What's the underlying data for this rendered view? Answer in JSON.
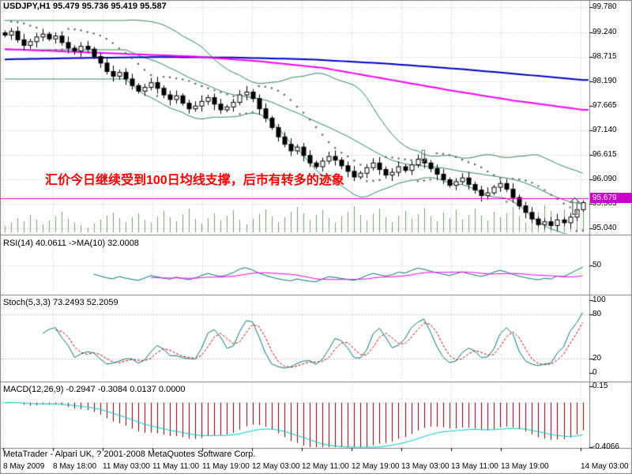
{
  "main_chart": {
    "title": "USDJPY,H1 95.479 95.736 95.419 95.587",
    "annotation": {
      "text": "汇价今日继续受到100日均线支撑，后市有转多的迹象",
      "color": "#ff0000"
    },
    "hline": {
      "label": "95.679",
      "value": 95.679,
      "color": "#cc00cc"
    },
    "price_ticks": [
      "99.780",
      "99.240",
      "98.715",
      "98.190",
      "97.665",
      "97.140",
      "96.615",
      "96.090",
      "95.565",
      "95.040"
    ],
    "arrows": {
      "down": "⇩",
      "up": "⇧"
    }
  },
  "panels": {
    "rsi": {
      "label": "RSI(14) 40.0611  ->MA(10) 32.0008",
      "ticks": [
        "50"
      ],
      "levels": [
        50
      ]
    },
    "stoch": {
      "label": "Stoch(5,3,3) 73.2493 52.2059",
      "ticks": [
        "100",
        "80",
        "20",
        "0"
      ],
      "levels": [
        80,
        20
      ]
    },
    "macd": {
      "label": "MACD(12,26,9) -0.2947  -0.3084 0.0137 0.0000",
      "ticks": [
        "0.15",
        "-0.4066"
      ]
    }
  },
  "time_axis": {
    "labels": [
      "8 May 2009",
      "8 May 18:00",
      "11 May 03:00",
      "11 May 11:00",
      "11 May 19:00",
      "12 May 03:00",
      "12 May 11:00",
      "12 May 19:00",
      "13 May 03:00",
      "13 May 11:00",
      "13 May 19:00",
      "14 May 03:00"
    ]
  },
  "status_bar": {
    "text": "MetaTrader - Alpari UK, ? 2001-2008 MetaQuotes Software Corp."
  },
  "colors": {
    "background": "#ffffff",
    "grid": "#c8c8c8",
    "divider": "#808080",
    "bull": "#ffffff",
    "bear": "#000000",
    "candle_border": "#000000",
    "bollinger": "#2e8b57",
    "ma_fast": "#ff00ff",
    "ma_slow": "#0000c8",
    "sar": "#606060",
    "volume": "#79a079",
    "rsi": "#007878",
    "rsi_ma": "#ff00ff",
    "stoch_k": "#007878",
    "stoch_d": "#cc0000",
    "macd_hist": "#800000",
    "macd_signal": "#00cccc",
    "hline": "#cc00cc",
    "annotation": "#ff0000"
  },
  "chart_data": {
    "type": "candlestick",
    "symbol": "USDJPY",
    "timeframe": "H1",
    "current_ohlc": {
      "open": 95.479,
      "high": 95.736,
      "low": 95.419,
      "close": 95.587
    },
    "ylim": [
      95.04,
      99.78
    ],
    "support_line": 95.679,
    "closes": [
      99.18,
      99.26,
      99.08,
      98.96,
      99.04,
      99.14,
      99.2,
      99.1,
      99.16,
      99.02,
      98.9,
      98.84,
      98.94,
      98.88,
      98.72,
      98.58,
      98.4,
      98.3,
      98.38,
      98.24,
      98.1,
      97.98,
      98.06,
      98.16,
      98.04,
      97.9,
      97.8,
      97.88,
      97.72,
      97.6,
      97.66,
      97.76,
      97.84,
      97.7,
      97.58,
      97.64,
      97.74,
      97.9,
      97.96,
      97.82,
      97.6,
      97.4,
      97.2,
      97.0,
      96.84,
      96.7,
      96.78,
      96.6,
      96.44,
      96.36,
      96.48,
      96.58,
      96.5,
      96.38,
      96.26,
      96.14,
      96.22,
      96.34,
      96.44,
      96.3,
      96.18,
      96.24,
      96.36,
      96.28,
      96.4,
      96.52,
      96.44,
      96.32,
      96.2,
      96.08,
      95.96,
      96.04,
      96.12,
      95.98,
      95.86,
      95.74,
      95.8,
      95.92,
      96.0,
      95.88,
      95.7,
      95.52,
      95.38,
      95.24,
      95.12,
      95.18,
      95.1,
      95.22,
      95.16,
      95.28,
      95.44,
      95.59
    ],
    "volumes": [
      8,
      12,
      18,
      14,
      22,
      16,
      10,
      15,
      20,
      26,
      17,
      12,
      9,
      6,
      11,
      16,
      21,
      25,
      18,
      13,
      19,
      24,
      16,
      12,
      20,
      27,
      19,
      14,
      23,
      30,
      17,
      11,
      18,
      24,
      15,
      21,
      28,
      16,
      10,
      17,
      23,
      29,
      20,
      13,
      19,
      26,
      32,
      24,
      16,
      22,
      28,
      18,
      12,
      20,
      26,
      33,
      22,
      15,
      24,
      30,
      19,
      13,
      21,
      27,
      17,
      23,
      31,
      20,
      14,
      25,
      18,
      28,
      16,
      22,
      30,
      21,
      15,
      26,
      19,
      24,
      32,
      20,
      12,
      18,
      25,
      34,
      27,
      22,
      29,
      24,
      31,
      38
    ],
    "overlays": {
      "bollinger_period": 20,
      "bollinger_dev": 2,
      "ma_slow_points": [
        [
          0,
          98.66
        ],
        [
          12,
          98.69
        ],
        [
          24,
          98.71
        ],
        [
          36,
          98.7
        ],
        [
          48,
          98.66
        ],
        [
          60,
          98.57
        ],
        [
          72,
          98.45
        ],
        [
          82,
          98.33
        ],
        [
          91,
          98.22
        ]
      ],
      "ma_fast_points": [
        [
          0,
          98.88
        ],
        [
          15,
          98.8
        ],
        [
          30,
          98.72
        ],
        [
          40,
          98.62
        ],
        [
          50,
          98.48
        ],
        [
          60,
          98.24
        ],
        [
          70,
          98.0
        ],
        [
          80,
          97.78
        ],
        [
          91,
          97.58
        ]
      ]
    },
    "indicators": {
      "rsi_period": 14,
      "rsi_ma_period": 10,
      "stoch": [
        5,
        3,
        3
      ],
      "macd": [
        12,
        26,
        9
      ]
    }
  }
}
